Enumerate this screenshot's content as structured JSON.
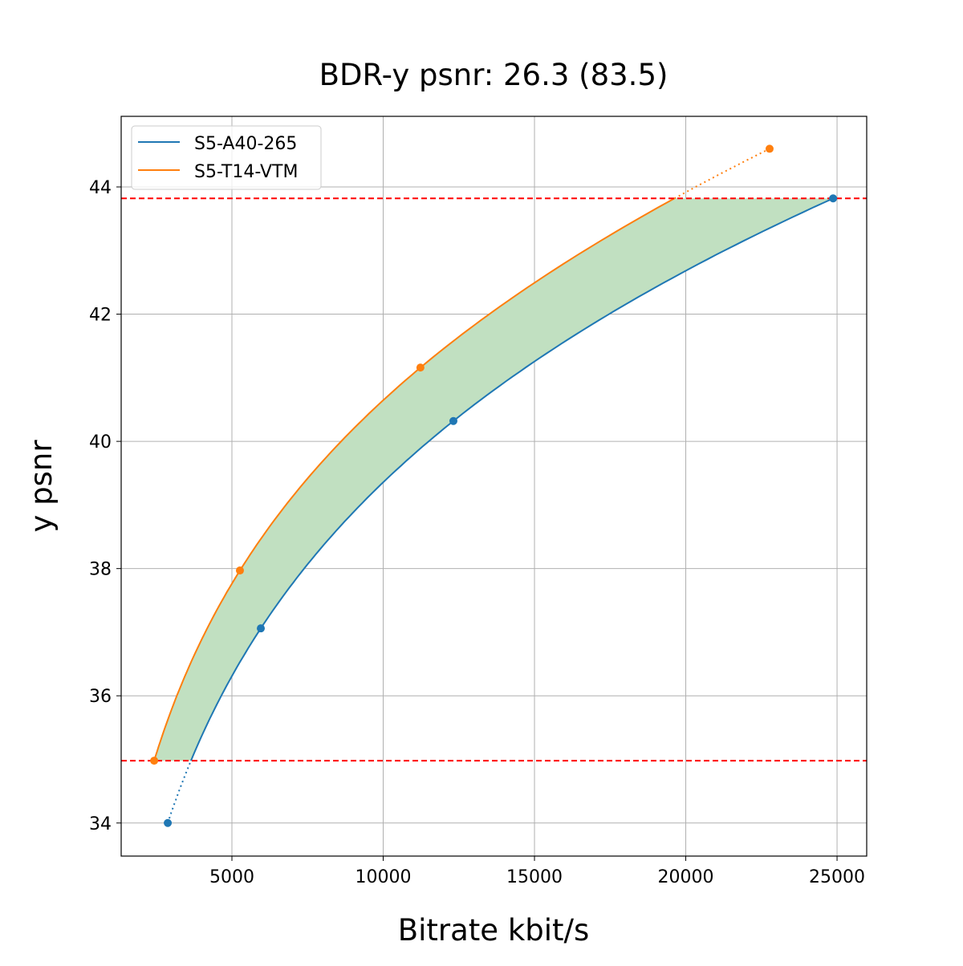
{
  "chart_data": {
    "type": "line",
    "title": "BDR-y psnr: 26.3 (83.5)",
    "xlabel": "Bitrate kbit/s",
    "ylabel": "y psnr",
    "xlim": [
      1340,
      25980
    ],
    "ylim": [
      33.48,
      45.11
    ],
    "xticks": [
      5000,
      10000,
      15000,
      20000,
      25000
    ],
    "yticks": [
      34,
      36,
      38,
      40,
      42,
      44
    ],
    "grid": true,
    "legend_position": "top-left",
    "series": [
      {
        "name": "S5-A40-265",
        "color": "#1f77b4",
        "x": [
          2880,
          5955,
          12320,
          24870
        ],
        "y": [
          34.0,
          37.06,
          40.32,
          43.82
        ]
      },
      {
        "name": "S5-T14-VTM",
        "color": "#ff7f0e",
        "x": [
          2430,
          5265,
          11230,
          22770
        ],
        "y": [
          34.98,
          37.97,
          41.16,
          44.6
        ]
      }
    ],
    "reference_lines": {
      "color": "#ff0000",
      "y": [
        34.98,
        43.82
      ]
    },
    "fill_color": "#c1e0c1"
  }
}
